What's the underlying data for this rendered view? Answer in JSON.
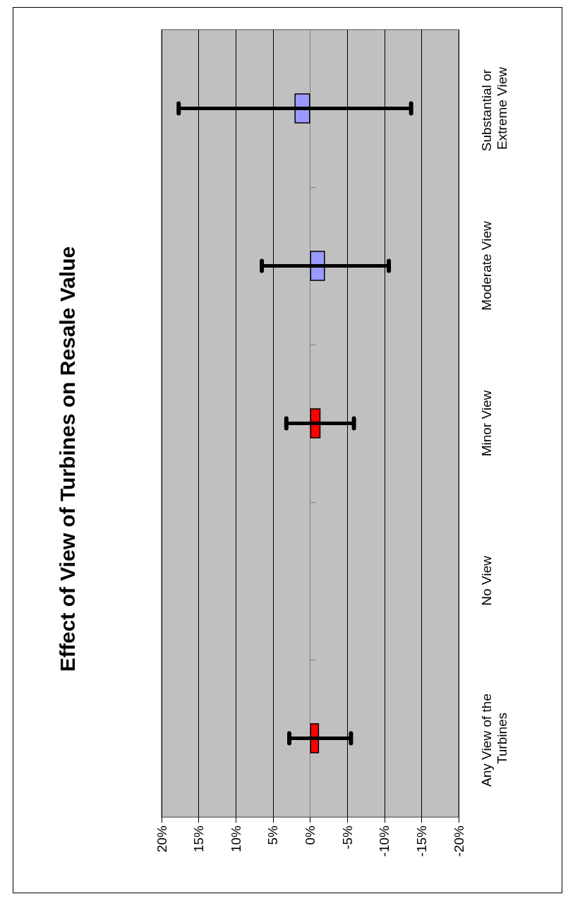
{
  "chart_data": {
    "type": "bar",
    "title": "Effect of View of Turbines on Resale Value",
    "orientation": "horizontal",
    "categories": [
      "Substantial or Extreme View",
      "Moderate View",
      "Minor View",
      "No View",
      "Any View of the Turbines"
    ],
    "values": [
      2.1,
      -2.0,
      -1.4,
      null,
      -1.2
    ],
    "colors": [
      "#9999ff",
      "#9999ff",
      "#ff0000",
      "#ff0000",
      "#ff0000"
    ],
    "errors": [
      [
        -13.6,
        17.7
      ],
      [
        -10.6,
        6.5
      ],
      [
        -5.9,
        3.2
      ],
      null,
      [
        -5.5,
        2.8
      ]
    ],
    "xlim": [
      20,
      -20
    ],
    "xticks": [
      {
        "value": 20,
        "label": "20%"
      },
      {
        "value": 15,
        "label": "15%"
      },
      {
        "value": 10,
        "label": "10%"
      },
      {
        "value": 5,
        "label": "5%"
      },
      {
        "value": 0,
        "label": "0%"
      },
      {
        "value": -5,
        "label": "-5%"
      },
      {
        "value": -10,
        "label": "-10%"
      },
      {
        "value": -15,
        "label": "-15%"
      },
      {
        "value": -20,
        "label": "-20%"
      }
    ],
    "grid": "x"
  }
}
